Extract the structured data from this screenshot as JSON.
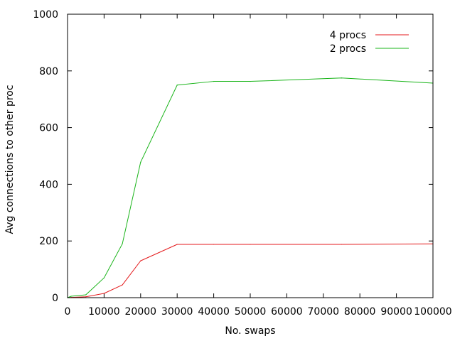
{
  "chart_data": {
    "type": "line",
    "title": "",
    "xlabel": "No. swaps",
    "ylabel": "Avg connections to other proc",
    "xlim": [
      0,
      100000
    ],
    "ylim": [
      0,
      1000
    ],
    "x_ticks": [
      0,
      10000,
      20000,
      30000,
      40000,
      50000,
      60000,
      70000,
      80000,
      90000,
      100000
    ],
    "x_tick_labels": [
      "0",
      "10000",
      "20000",
      "30000",
      "40000",
      "50000",
      "60000",
      "70000",
      "80000",
      "90000",
      "100000"
    ],
    "y_ticks": [
      0,
      200,
      400,
      600,
      800,
      1000
    ],
    "y_tick_labels": [
      "0",
      "200",
      "400",
      "600",
      "800",
      "1000"
    ],
    "grid": false,
    "legend_position": "top-right",
    "series": [
      {
        "name": "4 procs",
        "color": "#e41a1c",
        "x": [
          0,
          1000,
          5000,
          10000,
          15000,
          20000,
          30000,
          40000,
          50000,
          75000,
          100000
        ],
        "y": [
          0,
          1,
          3,
          15,
          45,
          130,
          188,
          188,
          188,
          188,
          190
        ]
      },
      {
        "name": "2 procs",
        "color": "#18b418",
        "x": [
          0,
          1000,
          5000,
          10000,
          15000,
          20000,
          30000,
          40000,
          50000,
          75000,
          100000
        ],
        "y": [
          0,
          5,
          10,
          70,
          190,
          478,
          750,
          763,
          763,
          775,
          757
        ]
      }
    ]
  }
}
